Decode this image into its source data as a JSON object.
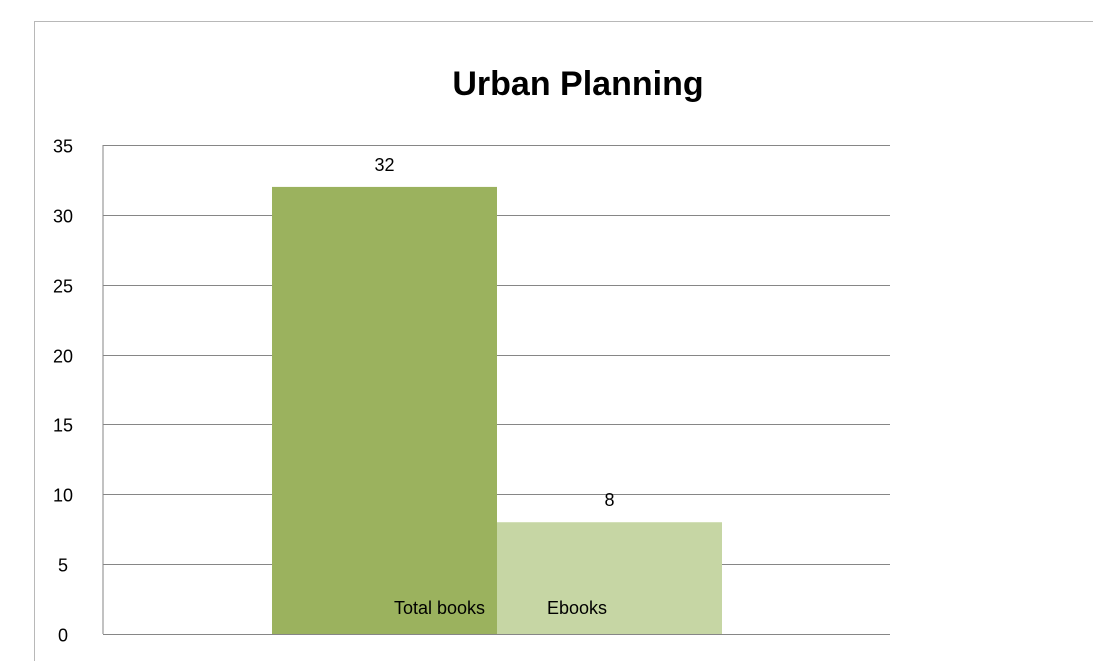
{
  "chart_data": {
    "type": "bar",
    "title": "Urban Planning",
    "categories": [
      "Total books",
      "Ebooks"
    ],
    "values": [
      32,
      8
    ],
    "colors": [
      "#9bb25e",
      "#c6d6a4"
    ],
    "data_labels": [
      "32",
      "8"
    ],
    "ylim": [
      0,
      35
    ],
    "yticks": [
      0,
      5,
      10,
      15,
      20,
      25,
      30,
      35
    ],
    "grid": true,
    "legend": "none",
    "xlabel": "",
    "ylabel": ""
  }
}
